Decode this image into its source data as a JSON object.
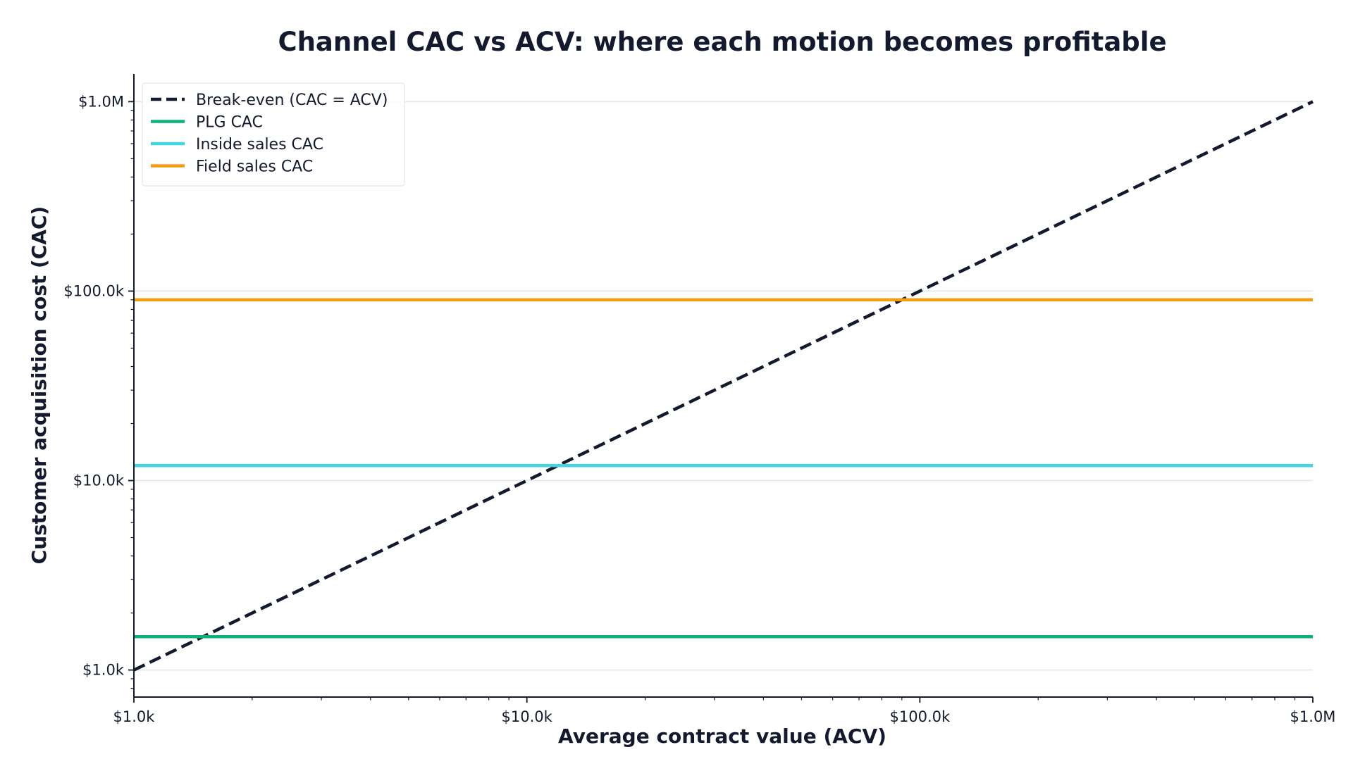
{
  "chart_data": {
    "type": "line",
    "title": "Channel CAC vs ACV: where each motion becomes profitable",
    "xlabel": "Average contract value (ACV)",
    "ylabel": "Customer acquisition cost (CAC)",
    "x_scale": "log",
    "y_scale": "log",
    "xlim": [
      1000,
      1000000
    ],
    "ylim": [
      720,
      1400000
    ],
    "x_ticks": [
      1000,
      10000,
      100000,
      1000000
    ],
    "x_tick_labels": [
      "$1.0k",
      "$10.0k",
      "$100.0k",
      "$1.0M"
    ],
    "y_ticks": [
      1000,
      10000,
      100000,
      1000000
    ],
    "y_tick_labels": [
      "$1.0k",
      "$10.0k",
      "$100.0k",
      "$1.0M"
    ],
    "grid": "horizontal",
    "legend_position": "top-left",
    "series": [
      {
        "name": "Break-even (CAC = ACV)",
        "style": "dashed",
        "color": "#141a2e",
        "x": [
          1000,
          1000000
        ],
        "y": [
          1000,
          1000000
        ]
      },
      {
        "name": "PLG CAC",
        "style": "solid",
        "color": "#10b07a",
        "x": [
          1000,
          1000000
        ],
        "y": [
          1500,
          1500
        ]
      },
      {
        "name": "Inside sales CAC",
        "style": "solid",
        "color": "#43d4e0",
        "x": [
          1000,
          1000000
        ],
        "y": [
          12000,
          12000
        ]
      },
      {
        "name": "Field sales CAC",
        "style": "solid",
        "color": "#f29d12",
        "x": [
          1000,
          1000000
        ],
        "y": [
          90000,
          90000
        ]
      }
    ]
  }
}
